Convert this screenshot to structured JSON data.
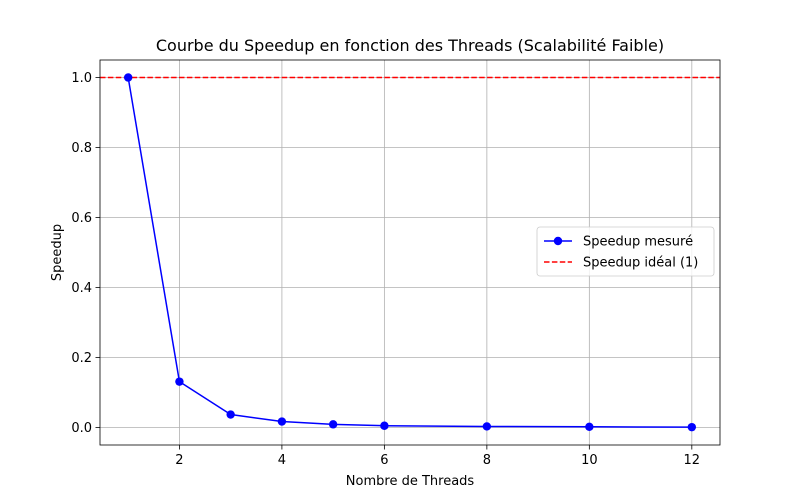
{
  "chart_data": {
    "type": "line",
    "title": "Courbe du Speedup en fonction des Threads (Scalabilité Faible)",
    "xlabel": "Nombre de Threads",
    "ylabel": "Speedup",
    "xlim": [
      0.45,
      12.55
    ],
    "ylim": [
      -0.05,
      1.05
    ],
    "xticks": [
      "2",
      "4",
      "6",
      "8",
      "10",
      "12"
    ],
    "yticks": [
      "0.0",
      "0.2",
      "0.4",
      "0.6",
      "0.8",
      "1.0"
    ],
    "grid": true,
    "legend_position": "center-right",
    "series": [
      {
        "name": "Speedup mesuré",
        "style": "solid",
        "marker": "circle",
        "color": "#0000ff",
        "x": [
          1,
          2,
          3,
          4,
          5,
          6,
          8,
          10,
          12
        ],
        "y": [
          1.0,
          0.131,
          0.037,
          0.017,
          0.009,
          0.005,
          0.003,
          0.002,
          0.001
        ]
      },
      {
        "name": "Speedup idéal (1)",
        "style": "dashed",
        "marker": "none",
        "color": "#ff0000",
        "hline": 1.0
      }
    ]
  }
}
